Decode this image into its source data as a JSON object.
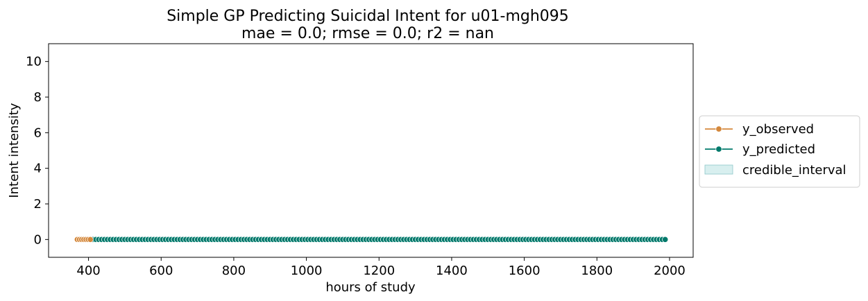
{
  "chart_data": {
    "type": "line",
    "title_line1": "Simple GP Predicting Suicidal Intent for u01-mgh095",
    "title_line2": "mae = 0.0; rmse = 0.0; r2 = nan",
    "xlabel": "hours of study",
    "ylabel": "Intent intensity",
    "xlim": [
      290,
      2065
    ],
    "ylim": [
      -1,
      11
    ],
    "xticks": [
      400,
      600,
      800,
      1000,
      1200,
      1400,
      1600,
      1800,
      2000
    ],
    "yticks": [
      0,
      2,
      4,
      6,
      8,
      10
    ],
    "legend_position": "right",
    "series": [
      {
        "name": "y_observed",
        "color": "#d4883c",
        "x": [
          369,
          375,
          381,
          387,
          393,
          399,
          405
        ],
        "y": [
          0,
          0,
          0,
          0,
          0,
          0,
          0
        ]
      },
      {
        "name": "y_predicted",
        "color": "#00796b",
        "x_start": 412,
        "x_end": 1988,
        "x_step": 8,
        "y_value": 0
      }
    ],
    "band": {
      "name": "credible_interval",
      "color": "#b2dfe0",
      "lower": 0,
      "upper": 0
    }
  }
}
